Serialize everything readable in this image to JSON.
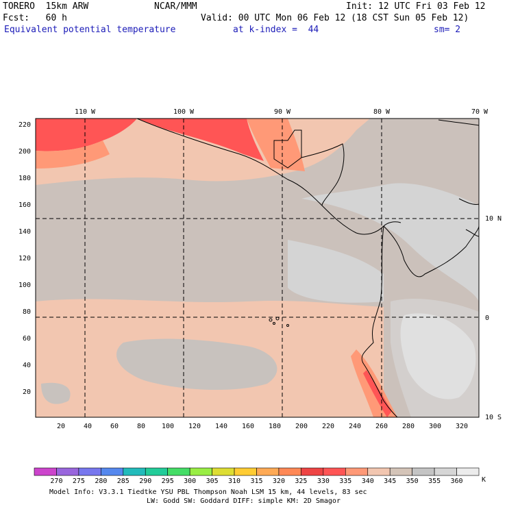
{
  "header": {
    "model": "TORERO  15km ARW",
    "center": "NCAR/MMM",
    "init": "Init: 12 UTC Fri 03 Feb 12",
    "fcst": "Fcst:   60 h",
    "valid": "Valid: 00 UTC Mon 06 Feb 12 (18 CST Sun 05 Feb 12)",
    "field": "Equivalent potential temperature",
    "level": "at k-index =  44",
    "smooth": "sm= 2"
  },
  "axes": {
    "top_labels": [
      "110 W",
      "100 W",
      "90 W",
      "80 W",
      "70 W"
    ],
    "right_labels": [
      "10 N",
      "0",
      "10 S"
    ],
    "left_ticks": [
      "220",
      "200",
      "180",
      "160",
      "140",
      "120",
      "100",
      "80",
      "60",
      "40",
      "20"
    ],
    "bottom_ticks": [
      "20",
      "40",
      "60",
      "80",
      "100",
      "120",
      "140",
      "160",
      "180",
      "200",
      "220",
      "240",
      "260",
      "280",
      "300",
      "320"
    ]
  },
  "colorbar": {
    "colors": [
      "#cc44cc",
      "#9966dd",
      "#7777ee",
      "#5588ee",
      "#22bbbb",
      "#22cc99",
      "#44dd66",
      "#99ee44",
      "#dddd33",
      "#ffcc33",
      "#ffaa55",
      "#ff8855",
      "#ee4444",
      "#ff5555",
      "#ff9977",
      "#f2c6b0",
      "#d4c4b8",
      "#c4c4c4",
      "#d6d6d6",
      "#ececec"
    ],
    "labels": [
      "270",
      "275",
      "280",
      "285",
      "290",
      "295",
      "300",
      "305",
      "310",
      "315",
      "320",
      "325",
      "330",
      "335",
      "340",
      "345",
      "350",
      "355",
      "360"
    ],
    "unit": "K"
  },
  "footer": {
    "line1": "Model Info: V3.3.1    Tiedtke YSU PBL  Thompson     Noah LSM  15 km,    44 levels,    83 sec",
    "line2": "LW: Godd SW: Goddard DIFF: simple KM: 2D Smagor"
  },
  "legend_colors": {
    "c340": "#f2c6b0",
    "c345": "#cbc1bb",
    "c350": "#c6c6c6",
    "c355": "#d4d4d4",
    "c360": "#ebebeb",
    "c330": "#ff5555",
    "c335": "#ff9977"
  }
}
